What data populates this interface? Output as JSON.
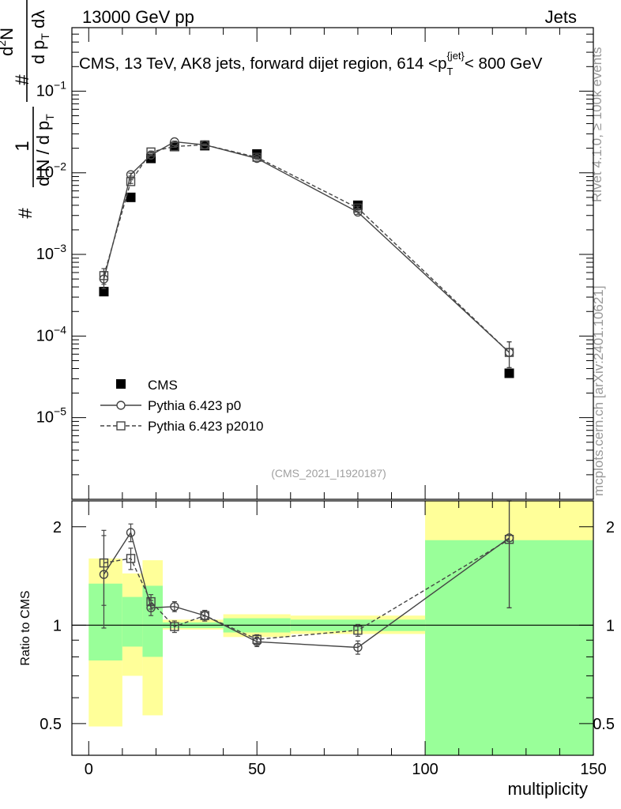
{
  "header": {
    "energy_label": "13000 GeV pp",
    "category_label": "Jets"
  },
  "side_labels": {
    "rivet": "Rivet 4.1.0, ≥ 100k events",
    "source": "mcplots.cern.ch [arXiv:2401.10621]"
  },
  "chart_data": [
    {
      "type": "scatter",
      "title": "CMS, 13 TeV, AK8 jets, forward dijet region, 614 <p_T^{jet}< 800 GeV",
      "ylabel": "1/N dN/dλ (d²N / dp_T dλ)",
      "yscale": "log",
      "ylim": [
        1e-06,
        0.6
      ],
      "xlim": [
        -5,
        150
      ],
      "yticks": [
        "10^-5",
        "10^-4",
        "10^-3",
        "10^-2",
        "10^-1"
      ],
      "watermark": "(CMS_2021_I1920187)",
      "legend_position": "lower-left",
      "series": [
        {
          "name": "CMS",
          "marker": "filled-square",
          "line": "none",
          "x": [
            4.5,
            12.5,
            18.5,
            25.5,
            34.5,
            50,
            80,
            125
          ],
          "y": [
            0.00035,
            0.005,
            0.015,
            0.021,
            0.0215,
            0.017,
            0.004,
            3.5e-05
          ]
        },
        {
          "name": "Pythia 6.423 p0",
          "marker": "open-circle",
          "line": "solid",
          "x": [
            4.5,
            12.5,
            18.5,
            25.5,
            34.5,
            50,
            80,
            125
          ],
          "y": [
            0.0005,
            0.0095,
            0.0165,
            0.024,
            0.022,
            0.015,
            0.0033,
            6.3e-05
          ],
          "yerr": [
            0.00012,
            0.0004,
            0.0004,
            0.0005,
            0.0005,
            0.0004,
            0.0002,
            2.2e-05
          ]
        },
        {
          "name": "Pythia 6.423 p2010",
          "marker": "open-square",
          "line": "dashed",
          "x": [
            4.5,
            12.5,
            18.5,
            25.5,
            34.5,
            50,
            80,
            125
          ],
          "y": [
            0.00055,
            0.0078,
            0.018,
            0.021,
            0.022,
            0.0155,
            0.0037,
            6.3e-05
          ],
          "yerr": [
            0.00012,
            0.0004,
            0.0004,
            0.0005,
            0.0005,
            0.0004,
            0.0002,
            2.2e-05
          ]
        }
      ]
    },
    {
      "type": "scatter",
      "xlabel": "multiplicity",
      "ylabel": "Ratio to CMS",
      "yscale": "log",
      "ylim": [
        0.4,
        2.4
      ],
      "xlim": [
        -5,
        150
      ],
      "xticks": [
        0,
        50,
        100,
        150
      ],
      "yticks": [
        0.5,
        1,
        2
      ],
      "reference_line": 1,
      "bands": [
        {
          "x0": 0,
          "x1": 10,
          "yellow": [
            0.49,
            1.6
          ],
          "green": [
            0.78,
            1.34
          ]
        },
        {
          "x0": 10,
          "x1": 16,
          "yellow": [
            0.7,
            1.44
          ],
          "green": [
            0.86,
            1.22
          ]
        },
        {
          "x0": 16,
          "x1": 22,
          "yellow": [
            0.53,
            1.58
          ],
          "green": [
            0.8,
            1.32
          ]
        },
        {
          "x0": 22,
          "x1": 40,
          "yellow": [
            0.97,
            1.04
          ],
          "green": [
            0.98,
            1.02
          ]
        },
        {
          "x0": 40,
          "x1": 60,
          "yellow": [
            0.92,
            1.08
          ],
          "green": [
            0.95,
            1.05
          ]
        },
        {
          "x0": 60,
          "x1": 100,
          "yellow": [
            0.94,
            1.07
          ],
          "green": [
            0.96,
            1.04
          ]
        },
        {
          "x0": 100,
          "x1": 150,
          "yellow": [
            0.0,
            2.4
          ],
          "green": [
            0.0,
            1.82
          ]
        }
      ],
      "series": [
        {
          "name": "Pythia 6.423 p0",
          "marker": "open-circle",
          "line": "solid",
          "x": [
            4.5,
            12.5,
            18.5,
            25.5,
            34.5,
            50,
            80,
            125
          ],
          "y": [
            1.43,
            1.92,
            1.13,
            1.14,
            1.07,
            0.89,
            0.855,
            1.85
          ],
          "yerr": [
            0.45,
            0.12,
            0.06,
            0.04,
            0.04,
            0.03,
            0.04,
            0.72
          ]
        },
        {
          "name": "Pythia 6.423 p2010",
          "marker": "open-square",
          "line": "dashed",
          "x": [
            4.5,
            12.5,
            18.5,
            25.5,
            34.5,
            50,
            80,
            125
          ],
          "y": [
            1.55,
            1.6,
            1.18,
            0.99,
            1.07,
            0.905,
            0.965,
            1.83
          ],
          "yerr": [
            0.4,
            0.12,
            0.06,
            0.04,
            0.04,
            0.03,
            0.04,
            0.7
          ]
        }
      ]
    }
  ]
}
